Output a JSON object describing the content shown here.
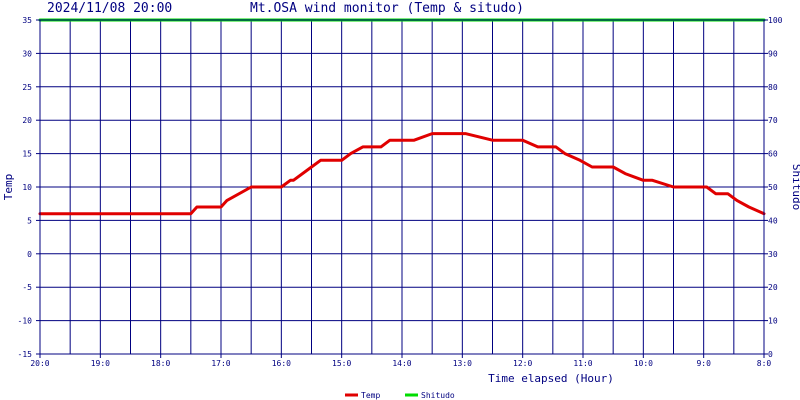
{
  "header": {
    "datetime": "2024/11/08 20:00",
    "title": "Mt.OSA wind monitor (Temp & situdo)"
  },
  "chart_data": {
    "type": "line",
    "xlabel": "Time elapsed (Hour)",
    "ylabel_left": "Temp",
    "ylabel_right": "Shitudo",
    "x_tick_labels": [
      "20:0",
      "19:0",
      "18:0",
      "17:0",
      "16:0",
      "15:0",
      "14:0",
      "13:0",
      "12:0",
      "11:0",
      "10:0",
      "9:0",
      "8:0"
    ],
    "x_range_hours_elapsed": [
      0,
      12
    ],
    "ylim_left": [
      -15,
      35
    ],
    "y_ticks_left": [
      35,
      30,
      25,
      20,
      15,
      10,
      5,
      0,
      -5,
      -10,
      -15
    ],
    "ylim_right": [
      0,
      100
    ],
    "y_ticks_right": [
      100,
      90,
      80,
      70,
      60,
      50,
      40,
      30,
      20,
      10,
      0
    ],
    "grid": true,
    "series": [
      {
        "name": "Temp",
        "axis": "left",
        "color": "#e00000",
        "x": [
          0,
          2.5,
          2.6,
          2.75,
          3.0,
          3.1,
          3.5,
          3.6,
          3.95,
          4.0,
          4.15,
          4.2,
          4.5,
          4.65,
          5.0,
          5.15,
          5.35,
          5.65,
          5.8,
          6.0,
          6.2,
          6.5,
          6.6,
          7.0,
          7.05,
          7.5,
          7.6,
          7.85,
          8.0,
          8.25,
          8.55,
          8.7,
          8.95,
          9.15,
          9.5,
          9.7,
          10.0,
          10.15,
          10.5,
          10.7,
          11.05,
          11.2,
          11.4,
          11.55,
          11.75,
          12.0
        ],
        "values": [
          6,
          6,
          7,
          7,
          7,
          8,
          10,
          10,
          10,
          10,
          11,
          11,
          13,
          14,
          14,
          15,
          16,
          16,
          17,
          17,
          17,
          18,
          18,
          18,
          18,
          17,
          17,
          17,
          17,
          16,
          16,
          15,
          14,
          13,
          13,
          12,
          11,
          11,
          10,
          10,
          10,
          9,
          9,
          8,
          7,
          6
        ]
      },
      {
        "name": "Shitudo",
        "axis": "right",
        "color": "#00dd00",
        "x": [
          0,
          12
        ],
        "values": [
          100,
          100
        ]
      }
    ],
    "legend": {
      "position": "bottom-center",
      "items": [
        {
          "label": "Temp",
          "color": "#e00000"
        },
        {
          "label": "Shitudo",
          "color": "#00dd00"
        }
      ]
    },
    "colors": {
      "frame": "#000080",
      "grid": "#000080",
      "text": "#000080",
      "background": "#ffffff"
    }
  }
}
